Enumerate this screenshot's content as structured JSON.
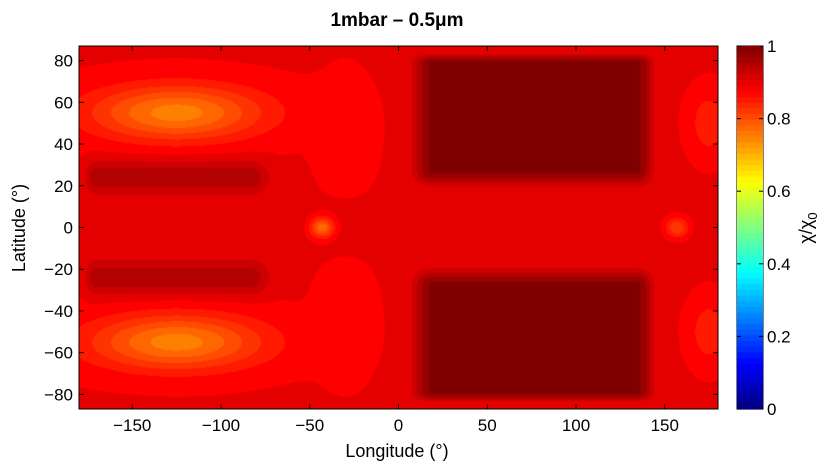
{
  "chart_data": {
    "type": "heatmap",
    "title": "1mbar – 0.5μm",
    "xlabel": "Longitude (°)",
    "ylabel": "Latitude (°)",
    "colorbar_label": "χ/χ",
    "colorbar_label_subscript": "0",
    "xlim": [
      -180,
      180
    ],
    "ylim": [
      -87,
      87
    ],
    "clim": [
      0,
      1
    ],
    "colormap": "jet",
    "xticks": [
      -150,
      -100,
      -50,
      0,
      50,
      100,
      150
    ],
    "xtick_labels": [
      "−150",
      "−100",
      "−50",
      "0",
      "50",
      "100",
      "150"
    ],
    "yticks": [
      -80,
      -60,
      -40,
      -20,
      0,
      20,
      40,
      60,
      80
    ],
    "ytick_labels": [
      "−80",
      "−60",
      "−40",
      "−20",
      "0",
      "20",
      "40",
      "60",
      "80"
    ],
    "cticks": [
      0,
      0.2,
      0.4,
      0.6,
      0.8,
      1
    ],
    "ctick_labels": [
      "0",
      "0.2",
      "0.4",
      "0.6",
      "0.8",
      "1"
    ],
    "grid": false,
    "features": [
      {
        "kind": "region",
        "desc": "dayside dark maximum north",
        "lon": [
          10,
          140
        ],
        "lat": [
          22,
          82
        ],
        "value": 0.99
      },
      {
        "kind": "region",
        "desc": "dayside dark maximum south",
        "lon": [
          10,
          140
        ],
        "lat": [
          -82,
          -22
        ],
        "value": 0.99
      },
      {
        "kind": "band",
        "desc": "nightside dark band north",
        "lon": [
          -170,
          -70
        ],
        "lat": [
          15,
          35
        ],
        "value": 0.97
      },
      {
        "kind": "band",
        "desc": "nightside dark band south",
        "lon": [
          -170,
          -70
        ],
        "lat": [
          -35,
          -15
        ],
        "value": 0.97
      },
      {
        "kind": "blob",
        "desc": "orange high-latitude blob north",
        "lon": [
          -175,
          -70
        ],
        "lat": [
          40,
          70
        ],
        "value": 0.78
      },
      {
        "kind": "blob",
        "desc": "orange high-latitude blob south",
        "lon": [
          -175,
          -70
        ],
        "lat": [
          -70,
          -40
        ],
        "value": 0.78
      },
      {
        "kind": "spot",
        "desc": "terminator spot",
        "lon": -43,
        "lat": 0,
        "value": 0.76
      },
      {
        "kind": "spot",
        "desc": "terminator spot",
        "lon": 157,
        "lat": 0,
        "value": 0.8
      },
      {
        "kind": "band",
        "desc": "equatorial band",
        "lon": [
          -180,
          180
        ],
        "lat": [
          -15,
          15
        ],
        "value": 0.9
      }
    ]
  }
}
